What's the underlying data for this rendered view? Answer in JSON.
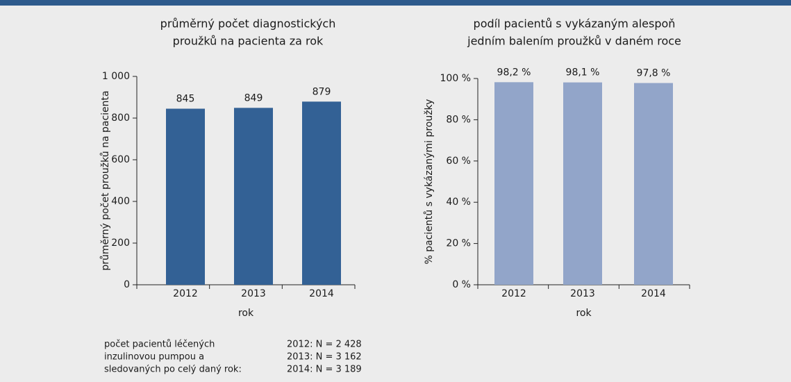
{
  "chart_data": [
    {
      "type": "bar",
      "title": [
        "průměrný počet diagnostických",
        "proužků na pacienta za rok"
      ],
      "categories": [
        "2012",
        "2013",
        "2014"
      ],
      "values": [
        845,
        849,
        879
      ],
      "color": "#336195",
      "xlabel": "rok",
      "ylabel": "průměrný počet proužků na pacienta",
      "ylim": [
        0,
        1000
      ],
      "yticks": [
        0,
        200,
        400,
        600,
        800,
        {
          "value": 1000,
          "label": "1 000"
        }
      ]
    },
    {
      "type": "bar",
      "title": [
        "podíl pacientů s vykázaným alespoň",
        "jedním balením proužků v daném roce"
      ],
      "categories": [
        "2012",
        "2013",
        "2014"
      ],
      "values": [
        98.2,
        98.1,
        97.8
      ],
      "value_labels": [
        "98,2 %",
        "98,1 %",
        "97,8 %"
      ],
      "color": "#92a5c9",
      "xlabel": "rok",
      "ylabel": "% pacientů s vykázanými proužky",
      "ylim": [
        0,
        100
      ],
      "yticks": [
        {
          "value": 0,
          "label": "0 %"
        },
        {
          "value": 20,
          "label": "20 %"
        },
        {
          "value": 40,
          "label": "40 %"
        },
        {
          "value": 60,
          "label": "60 %"
        },
        {
          "value": 80,
          "label": "80 %"
        },
        {
          "value": 100,
          "label": "100 %"
        }
      ]
    }
  ],
  "note": {
    "lines": [
      "počet pacientů léčených",
      "inzulinovou pumpou a",
      "sledovaných po celý daný rok:"
    ],
    "counts": [
      "2012: N = 2 428",
      "2013: N = 3 162",
      "2014: N = 3 189"
    ]
  }
}
